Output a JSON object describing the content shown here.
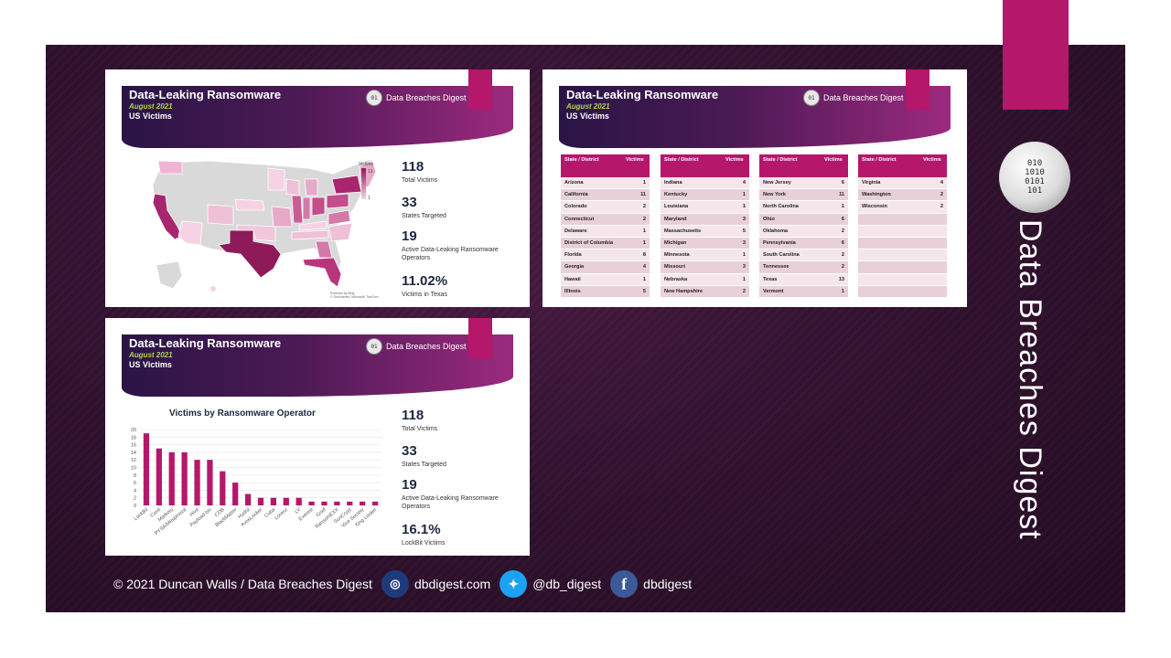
{
  "slide_header": {
    "title": "Data-Leaking Ransomware",
    "date": "August 2021",
    "subtitle": "US Victims",
    "logo": "Data Breaches Digest"
  },
  "map_slide": {
    "legend_title": "Victims",
    "legend_max": "13",
    "legend_min": "1",
    "attribution": "Powered by Bing\n© GeoNames, Microsoft, TomTom",
    "stats": [
      {
        "value": "118",
        "label": "Total Victims"
      },
      {
        "value": "33",
        "label": "States Targeted"
      },
      {
        "value": "19",
        "label": "Active Data-Leaking Ransomware Operators"
      },
      {
        "value": "11.02%",
        "label": "Victims in Texas"
      }
    ]
  },
  "table_slide": {
    "col_state": "State / District",
    "col_victims": "Victims",
    "tables": [
      [
        [
          "Arizona",
          "1"
        ],
        [
          "California",
          "11"
        ],
        [
          "Colorado",
          "2"
        ],
        [
          "Connecticut",
          "2"
        ],
        [
          "Delaware",
          "1"
        ],
        [
          "District of Columbia",
          "1"
        ],
        [
          "Florida",
          "8"
        ],
        [
          "Georgia",
          "4"
        ],
        [
          "Hawaii",
          "1"
        ],
        [
          "Illinois",
          "5"
        ]
      ],
      [
        [
          "Indiana",
          "4"
        ],
        [
          "Kentucky",
          "1"
        ],
        [
          "Louisiana",
          "1"
        ],
        [
          "Maryland",
          "3"
        ],
        [
          "Massachusetts",
          "5"
        ],
        [
          "Michigan",
          "3"
        ],
        [
          "Minnesota",
          "1"
        ],
        [
          "Missouri",
          "3"
        ],
        [
          "Nebraska",
          "1"
        ],
        [
          "New Hampshire",
          "2"
        ]
      ],
      [
        [
          "New Jersey",
          "6"
        ],
        [
          "New York",
          "11"
        ],
        [
          "North Carolina",
          "1"
        ],
        [
          "Ohio",
          "6"
        ],
        [
          "Oklahoma",
          "2"
        ],
        [
          "Pennsylvania",
          "6"
        ],
        [
          "South Carolina",
          "2"
        ],
        [
          "Tennessee",
          "2"
        ],
        [
          "Texas",
          "13"
        ],
        [
          "Vermont",
          "1"
        ]
      ],
      [
        [
          "Virginia",
          "4"
        ],
        [
          "Washington",
          "2"
        ],
        [
          "Wisconsin",
          "2"
        ],
        [
          "",
          ""
        ],
        [
          "",
          ""
        ],
        [
          "",
          ""
        ],
        [
          "",
          ""
        ],
        [
          "",
          ""
        ],
        [
          "",
          ""
        ],
        [
          "",
          ""
        ]
      ]
    ]
  },
  "chart_slide": {
    "stats": [
      {
        "value": "118",
        "label": "Total Victims"
      },
      {
        "value": "33",
        "label": "States Targeted"
      },
      {
        "value": "19",
        "label": "Active Data-Leaking Ransomware Operators"
      },
      {
        "value": "16.1%",
        "label": "LockBit Victims"
      }
    ]
  },
  "chart_data": {
    "type": "bar",
    "title": "Victims by Ransomware Operator",
    "categories": [
      "LockBit",
      "Conti",
      "Marketo",
      "PYSA/Mespinoza",
      "Hive",
      "Payload.bin",
      "CDB",
      "BlackMatter",
      "Hydra",
      "AvosLocker",
      "Cuba",
      "Lorenz",
      "LV",
      "Everest",
      "Grief",
      "RansomEXX",
      "SunCrypt",
      "Vice Society",
      "Xing Locker"
    ],
    "values": [
      19,
      15,
      14,
      14,
      12,
      12,
      9,
      6,
      3,
      2,
      2,
      2,
      2,
      1,
      1,
      1,
      1,
      1,
      1
    ],
    "ylim": [
      0,
      20
    ],
    "yticks": [
      0,
      2,
      4,
      6,
      8,
      10,
      12,
      14,
      16,
      18,
      20
    ],
    "bar_color": "#b5176b",
    "grid": true
  },
  "footer": {
    "copyright": "© 2021 Duncan Walls / Data Breaches Digest",
    "website": "dbdigest.com",
    "twitter": "@db_digest",
    "facebook": "dbdigest"
  },
  "side_brand": {
    "name": "Data Breaches Digest",
    "logo_text": "010\n1010\n0101\n101"
  },
  "colors": {
    "accent": "#b5176b",
    "background": "#2f102c",
    "map_light": "#f3c6dc",
    "map_dark": "#8e1a5a"
  }
}
